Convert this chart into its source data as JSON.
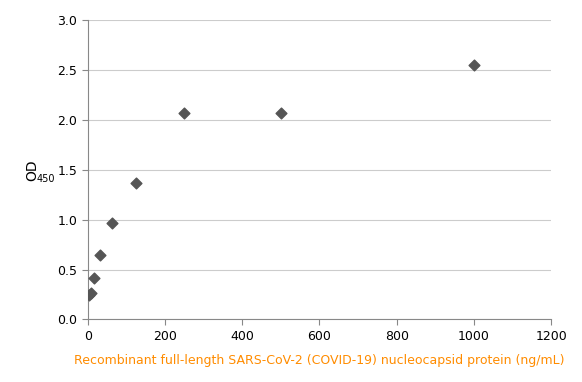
{
  "scatter_x": [
    3.9,
    7.8,
    15.6,
    31.25,
    62.5,
    125,
    250,
    500,
    1000
  ],
  "scatter_y": [
    0.25,
    0.27,
    0.42,
    0.65,
    0.97,
    1.37,
    2.07,
    2.07,
    2.55
  ],
  "scatter_color": "#555555",
  "curve_color": "#333333",
  "xlabel": "Recombinant full-length SARS-CoV-2 (COVID-19) nucleocapsid protein (ng/mL)",
  "xlabel_color": "#FF8C00",
  "ylabel": "OD",
  "ylabel_subscript": "450",
  "xlim": [
    0,
    1200
  ],
  "ylim": [
    0,
    3
  ],
  "xticks": [
    0,
    200,
    400,
    600,
    800,
    1000,
    1200
  ],
  "yticks": [
    0,
    0.5,
    1,
    1.5,
    2,
    2.5,
    3
  ],
  "background_color": "#ffffff",
  "grid_color": "#cccccc"
}
